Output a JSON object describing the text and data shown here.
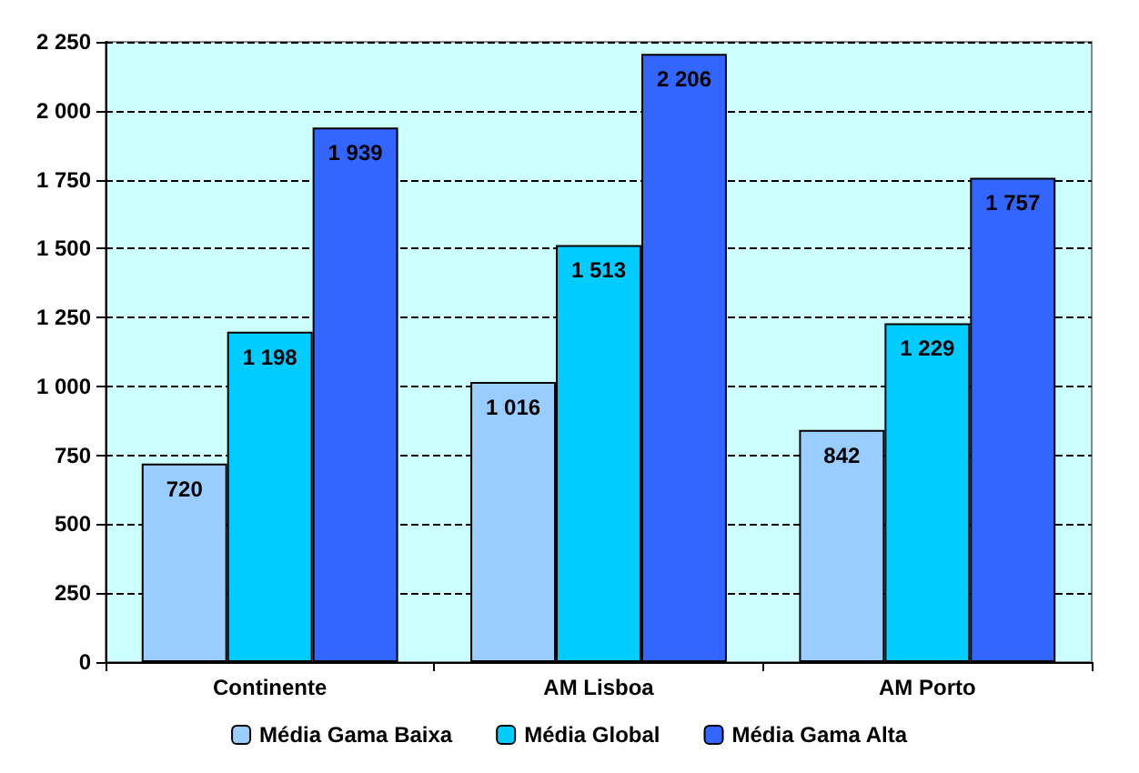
{
  "chart_data": {
    "type": "bar",
    "categories": [
      "Continente",
      "AM Lisboa",
      "AM Porto"
    ],
    "series": [
      {
        "name": "Média Gama Baixa",
        "color": "#99ccff",
        "values": [
          720,
          1016,
          842
        ],
        "value_labels": [
          "720",
          "1 016",
          "842"
        ]
      },
      {
        "name": "Média Global",
        "color": "#00ccff",
        "values": [
          1198,
          1513,
          1229
        ],
        "value_labels": [
          "1 198",
          "1 513",
          "1 229"
        ]
      },
      {
        "name": "Média Gama Alta",
        "color": "#3366ff",
        "values": [
          1939,
          2206,
          1757
        ],
        "value_labels": [
          "1 939",
          "2 206",
          "1 757"
        ]
      }
    ],
    "ylim": [
      0,
      2250
    ],
    "yticks": [
      {
        "value": 0,
        "label": "0"
      },
      {
        "value": 250,
        "label": "250"
      },
      {
        "value": 500,
        "label": "500"
      },
      {
        "value": 750,
        "label": "750"
      },
      {
        "value": 1000,
        "label": "1 000"
      },
      {
        "value": 1250,
        "label": "1 250"
      },
      {
        "value": 1500,
        "label": "1 500"
      },
      {
        "value": 1750,
        "label": "1 750"
      },
      {
        "value": 2000,
        "label": "2 000"
      },
      {
        "value": 2250,
        "label": "2 250"
      }
    ],
    "grid": true,
    "legend": "bottom"
  }
}
